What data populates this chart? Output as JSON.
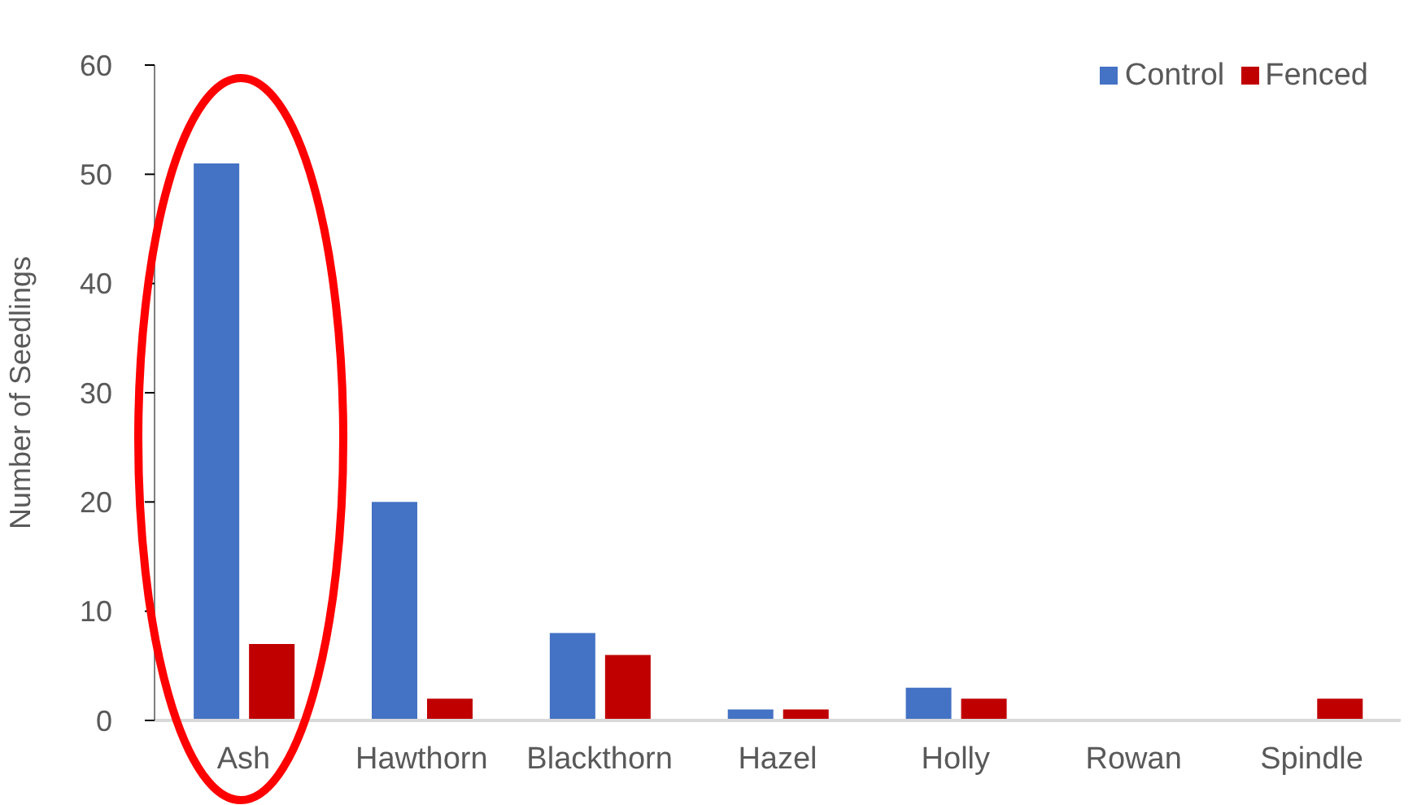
{
  "chart_data": {
    "type": "bar",
    "ylabel": "Number of Seedlings",
    "categories": [
      "Ash",
      "Hawthorn",
      "Blackthorn",
      "Hazel",
      "Holly",
      "Rowan",
      "Spindle"
    ],
    "series": [
      {
        "name": "Control",
        "color": "#4472c4",
        "values": [
          51,
          20,
          8,
          1,
          3,
          0,
          0
        ]
      },
      {
        "name": "Fenced",
        "color": "#c00000",
        "values": [
          7,
          2,
          6,
          1,
          2,
          0,
          2
        ]
      }
    ],
    "ylim": [
      0,
      60
    ],
    "yticks": [
      0,
      10,
      20,
      30,
      40,
      50,
      60
    ],
    "grid": false,
    "legend": "top right"
  }
}
